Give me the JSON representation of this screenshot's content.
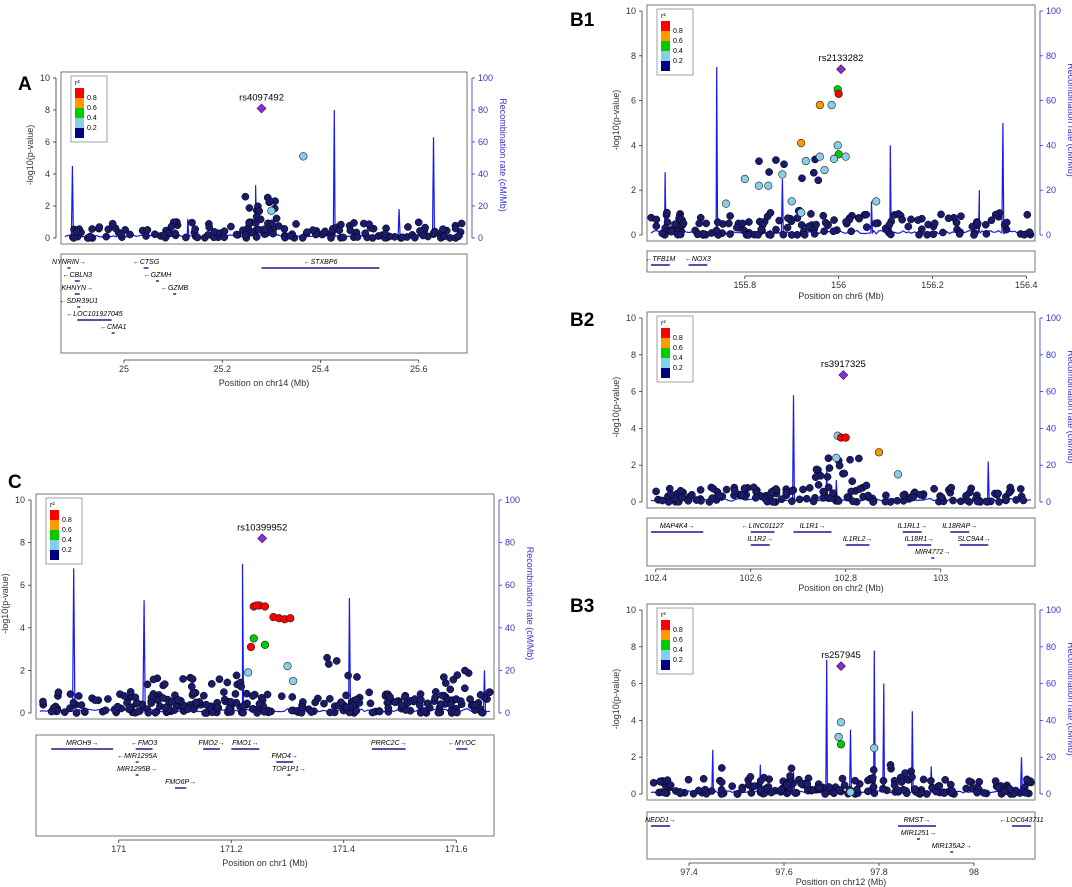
{
  "chart_data": [
    {
      "id": "A",
      "type": "scatter",
      "panel_label": "A",
      "xlabel": "Position on chr14 (Mb)",
      "ylabel": "-log10(p-value)",
      "y2label": "Recombination rate (cM/Mb)",
      "xlim": [
        24.88,
        25.69
      ],
      "ylim": [
        0,
        10
      ],
      "y2lim": [
        0,
        100
      ],
      "xticks": [
        25,
        25.2,
        25.4,
        25.6
      ],
      "xtick_labels": [
        "25",
        "25.2",
        "25.4",
        "25.6"
      ],
      "yticks": [
        0,
        2,
        4,
        6,
        8,
        10
      ],
      "y2ticks": [
        0,
        20,
        40,
        60,
        80,
        100
      ],
      "legend": {
        "title": "r²",
        "labels": [
          "0.8",
          "0.6",
          "0.4",
          "0.2"
        ],
        "colors": [
          "#ff0000",
          "#ff9900",
          "#00cc00",
          "#87ceeb",
          "#000080"
        ]
      },
      "lead_snp": {
        "label": "rs4097492",
        "x": 25.28,
        "y": 8.1
      },
      "highlight_points": [
        {
          "x": 25.365,
          "y": 5.1,
          "r2": 0.3
        },
        {
          "x": 25.3,
          "y": 1.7,
          "r2": 0.3
        }
      ],
      "background_points": {
        "seed": 11,
        "n": 150,
        "gen_x": [
          24.88,
          25.69
        ],
        "max_y": 1.0,
        "clusters": [
          {
            "x": 25.28,
            "w": 0.08,
            "n": 22,
            "maxy": 2.6
          }
        ]
      },
      "recomb_peaks": [
        [
          24.895,
          45
        ],
        [
          25.13,
          12
        ],
        [
          25.268,
          33
        ],
        [
          25.428,
          80
        ],
        [
          25.56,
          18
        ],
        [
          25.63,
          63
        ]
      ],
      "genes": [
        {
          "name": "NYNRIN",
          "start": 24.885,
          "end": 24.89,
          "row": 0,
          "strand": "+"
        },
        {
          "name": "CTSG",
          "start": 25.04,
          "end": 25.05,
          "row": 0,
          "strand": "-"
        },
        {
          "name": "STXBP6",
          "start": 25.28,
          "end": 25.52,
          "row": 0,
          "strand": "-"
        },
        {
          "name": "CBLN3",
          "start": 24.9,
          "end": 24.91,
          "row": 1,
          "strand": "-"
        },
        {
          "name": "GZMH",
          "start": 25.065,
          "end": 25.07,
          "row": 1,
          "strand": "-"
        },
        {
          "name": "KHNYN",
          "start": 24.9,
          "end": 24.91,
          "row": 2,
          "strand": "+"
        },
        {
          "name": "GZMB",
          "start": 25.1,
          "end": 25.105,
          "row": 2,
          "strand": "-"
        },
        {
          "name": "SDR39U1",
          "start": 24.905,
          "end": 24.91,
          "row": 3,
          "strand": "-"
        },
        {
          "name": "LOC101927045",
          "start": 24.905,
          "end": 24.975,
          "row": 4,
          "strand": "-"
        },
        {
          "name": "CMA1",
          "start": 24.975,
          "end": 24.98,
          "row": 5,
          "strand": "-"
        }
      ]
    },
    {
      "id": "B1",
      "type": "scatter",
      "panel_label": "B1",
      "xlabel": "Position on chr6 (Mb)",
      "ylabel": "-log10(p-value)",
      "y2label": "Recombination rate (cM/Mb)",
      "xlim": [
        155.6,
        156.41
      ],
      "ylim": [
        0,
        10
      ],
      "y2lim": [
        0,
        100
      ],
      "xticks": [
        155.8,
        156,
        156.2,
        156.4
      ],
      "xtick_labels": [
        "155.8",
        "156",
        "156.2",
        "156.4"
      ],
      "yticks": [
        0,
        2,
        4,
        6,
        8,
        10
      ],
      "y2ticks": [
        0,
        20,
        40,
        60,
        80,
        100
      ],
      "legend": {
        "title": "r²",
        "labels": [
          "0.8",
          "0.6",
          "0.4",
          "0.2"
        ],
        "colors": [
          "#ff0000",
          "#ff9900",
          "#00cc00",
          "#87ceeb",
          "#000080"
        ]
      },
      "lead_snp": {
        "label": "rs2133282",
        "x": 156.005,
        "y": 7.4
      },
      "highlight_points": [
        {
          "x": 155.998,
          "y": 6.5,
          "r2": 0.5
        },
        {
          "x": 156.0,
          "y": 6.3,
          "r2": 0.9
        },
        {
          "x": 155.96,
          "y": 5.8,
          "r2": 0.7
        },
        {
          "x": 155.985,
          "y": 5.8,
          "r2": 0.3
        },
        {
          "x": 155.92,
          "y": 4.1,
          "r2": 0.7
        },
        {
          "x": 155.998,
          "y": 4.0,
          "r2": 0.3
        },
        {
          "x": 156.0,
          "y": 3.6,
          "r2": 0.5
        },
        {
          "x": 156.015,
          "y": 3.5,
          "r2": 0.3
        },
        {
          "x": 155.96,
          "y": 3.5,
          "r2": 0.3
        },
        {
          "x": 155.93,
          "y": 3.3,
          "r2": 0.3
        },
        {
          "x": 155.99,
          "y": 3.4,
          "r2": 0.3
        },
        {
          "x": 155.8,
          "y": 2.5,
          "r2": 0.3
        },
        {
          "x": 155.83,
          "y": 2.2,
          "r2": 0.3
        },
        {
          "x": 155.85,
          "y": 2.2,
          "r2": 0.3
        },
        {
          "x": 155.88,
          "y": 2.7,
          "r2": 0.3
        },
        {
          "x": 155.97,
          "y": 2.9,
          "r2": 0.3
        },
        {
          "x": 155.9,
          "y": 1.5,
          "r2": 0.3
        },
        {
          "x": 155.76,
          "y": 1.4,
          "r2": 0.3
        },
        {
          "x": 156.08,
          "y": 1.5,
          "r2": 0.3
        },
        {
          "x": 155.92,
          "y": 1.0,
          "r2": 0.3
        }
      ],
      "background_points": {
        "seed": 23,
        "n": 150,
        "gen_x": [
          155.6,
          156.41
        ],
        "max_y": 1.0,
        "clusters": [
          {
            "x": 155.9,
            "w": 0.14,
            "n": 16,
            "maxy": 3.6
          }
        ]
      },
      "recomb_peaks": [
        [
          155.63,
          28
        ],
        [
          155.74,
          75
        ],
        [
          155.88,
          25
        ],
        [
          156.07,
          15
        ],
        [
          156.11,
          40
        ],
        [
          156.3,
          20
        ],
        [
          156.35,
          50
        ]
      ],
      "genes": [
        {
          "name": "TFB1M",
          "start": 155.6,
          "end": 155.64,
          "row": 0,
          "strand": "-"
        },
        {
          "name": "NOX3",
          "start": 155.68,
          "end": 155.72,
          "row": 0,
          "strand": "-"
        }
      ]
    },
    {
      "id": "B2",
      "type": "scatter",
      "panel_label": "B2",
      "xlabel": "Position on chr2 (Mb)",
      "ylabel": "-log10(p-value)",
      "y2label": "Recombination rate (cM/Mb)",
      "xlim": [
        102.39,
        103.19
      ],
      "ylim": [
        0,
        10
      ],
      "y2lim": [
        0,
        100
      ],
      "xticks": [
        102.4,
        102.6,
        102.8,
        103
      ],
      "xtick_labels": [
        "102.4",
        "102.6",
        "102.8",
        "103"
      ],
      "yticks": [
        0,
        2,
        4,
        6,
        8,
        10
      ],
      "y2ticks": [
        0,
        20,
        40,
        60,
        80,
        100
      ],
      "legend": {
        "title": "r²",
        "labels": [
          "0.8",
          "0.6",
          "0.4",
          "0.2"
        ],
        "colors": [
          "#ff0000",
          "#ff9900",
          "#00cc00",
          "#87ceeb",
          "#000080"
        ]
      },
      "lead_snp": {
        "label": "rs3917325",
        "x": 102.795,
        "y": 6.9
      },
      "highlight_points": [
        {
          "x": 102.783,
          "y": 3.6,
          "r2": 0.3
        },
        {
          "x": 102.79,
          "y": 3.5,
          "r2": 0.9
        },
        {
          "x": 102.8,
          "y": 3.5,
          "r2": 0.9
        },
        {
          "x": 102.87,
          "y": 2.7,
          "r2": 0.7
        },
        {
          "x": 102.78,
          "y": 2.4,
          "r2": 0.3
        },
        {
          "x": 102.91,
          "y": 1.5,
          "r2": 0.3
        }
      ],
      "background_points": {
        "seed": 37,
        "n": 150,
        "gen_x": [
          102.39,
          103.19
        ],
        "max_y": 0.8,
        "clusters": [
          {
            "x": 102.79,
            "w": 0.12,
            "n": 22,
            "maxy": 2.4
          }
        ]
      },
      "recomb_peaks": [
        [
          102.69,
          58
        ],
        [
          102.76,
          18
        ],
        [
          102.78,
          12
        ],
        [
          103.1,
          22
        ]
      ],
      "genes": [
        {
          "name": "MAP4K4",
          "start": 102.39,
          "end": 102.5,
          "row": 0,
          "strand": "+"
        },
        {
          "name": "LINC01127",
          "start": 102.6,
          "end": 102.65,
          "row": 0,
          "strand": "-"
        },
        {
          "name": "IL1R1",
          "start": 102.69,
          "end": 102.77,
          "row": 0,
          "strand": "+"
        },
        {
          "name": "IL1RL1",
          "start": 102.92,
          "end": 102.96,
          "row": 0,
          "strand": "+"
        },
        {
          "name": "IL18RAP",
          "start": 103.02,
          "end": 103.06,
          "row": 0,
          "strand": "+"
        },
        {
          "name": "IL1R2",
          "start": 102.6,
          "end": 102.64,
          "row": 1,
          "strand": "+"
        },
        {
          "name": "IL1RL2",
          "start": 102.8,
          "end": 102.85,
          "row": 1,
          "strand": "+"
        },
        {
          "name": "IL18R1",
          "start": 102.93,
          "end": 102.98,
          "row": 1,
          "strand": "+"
        },
        {
          "name": "SLC9A4",
          "start": 103.04,
          "end": 103.1,
          "row": 1,
          "strand": "+"
        },
        {
          "name": "MIR4772",
          "start": 102.98,
          "end": 102.985,
          "row": 2,
          "strand": "+"
        }
      ]
    },
    {
      "id": "B3",
      "type": "scatter",
      "panel_label": "B3",
      "xlabel": "Position on chr12 (Mb)",
      "ylabel": "-log10(p-value)",
      "y2label": "Recombination rate (cM/Mb)",
      "xlim": [
        97.32,
        98.12
      ],
      "ylim": [
        0,
        10
      ],
      "y2lim": [
        0,
        100
      ],
      "xticks": [
        97.4,
        97.6,
        97.8,
        98
      ],
      "xtick_labels": [
        "97.4",
        "97.6",
        "97.8",
        "98"
      ],
      "yticks": [
        0,
        2,
        4,
        6,
        8,
        10
      ],
      "y2ticks": [
        0,
        20,
        40,
        60,
        80,
        100
      ],
      "legend": {
        "title": "r²",
        "labels": [
          "0.8",
          "0.6",
          "0.4",
          "0.2"
        ],
        "colors": [
          "#ff0000",
          "#ff9900",
          "#00cc00",
          "#87ceeb",
          "#000080"
        ]
      },
      "lead_snp": {
        "label": "rs257945",
        "x": 97.72,
        "y": 6.95
      },
      "highlight_points": [
        {
          "x": 97.72,
          "y": 3.9,
          "r2": 0.3
        },
        {
          "x": 97.715,
          "y": 3.1,
          "r2": 0.3
        },
        {
          "x": 97.72,
          "y": 2.7,
          "r2": 0.5
        },
        {
          "x": 97.79,
          "y": 2.5,
          "r2": 0.3
        },
        {
          "x": 97.74,
          "y": 0.1,
          "r2": 0.3
        }
      ],
      "background_points": {
        "seed": 51,
        "n": 160,
        "gen_x": [
          97.32,
          98.12
        ],
        "max_y": 0.9,
        "clusters": [
          {
            "x": 97.55,
            "w": 0.2,
            "n": 14,
            "maxy": 1.5
          },
          {
            "x": 97.82,
            "w": 0.1,
            "n": 14,
            "maxy": 1.8
          }
        ]
      },
      "recomb_peaks": [
        [
          97.45,
          24
        ],
        [
          97.55,
          16
        ],
        [
          97.62,
          12
        ],
        [
          97.69,
          73
        ],
        [
          97.74,
          35
        ],
        [
          97.79,
          78
        ],
        [
          97.81,
          60
        ],
        [
          97.87,
          45
        ],
        [
          97.91,
          15
        ],
        [
          98.1,
          20
        ]
      ],
      "genes": [
        {
          "name": "NEDD1",
          "start": 97.32,
          "end": 97.36,
          "row": 0,
          "strand": "+"
        },
        {
          "name": "RMST",
          "start": 97.84,
          "end": 97.92,
          "row": 0,
          "strand": "+"
        },
        {
          "name": "LOC643711",
          "start": 98.08,
          "end": 98.12,
          "row": 0,
          "strand": "-"
        },
        {
          "name": "MIR1251",
          "start": 97.88,
          "end": 97.885,
          "row": 1,
          "strand": "+"
        },
        {
          "name": "MIR135A2",
          "start": 97.95,
          "end": 97.955,
          "row": 2,
          "strand": "+"
        }
      ]
    },
    {
      "id": "C",
      "type": "scatter",
      "panel_label": "C",
      "xlabel": "Position on chr1 (Mb)",
      "ylabel": "-log10(p-value)",
      "y2label": "Recombination rate (cM/Mb)",
      "xlim": [
        170.86,
        171.66
      ],
      "ylim": [
        0,
        10
      ],
      "y2lim": [
        0,
        100
      ],
      "xticks": [
        171,
        171.2,
        171.4,
        171.6
      ],
      "xtick_labels": [
        "171",
        "171.2",
        "171.4",
        "171.6"
      ],
      "yticks": [
        0,
        2,
        4,
        6,
        8,
        10
      ],
      "y2ticks": [
        0,
        20,
        40,
        60,
        80,
        100
      ],
      "legend": {
        "title": "r²",
        "labels": [
          "0.8",
          "0.6",
          "0.4",
          "0.2"
        ],
        "colors": [
          "#ff0000",
          "#ff9900",
          "#00cc00",
          "#87ceeb",
          "#000080"
        ]
      },
      "lead_snp": {
        "label": "rs10399952",
        "x": 171.255,
        "y": 8.2
      },
      "highlight_points": [
        {
          "x": 171.24,
          "y": 5.0,
          "r2": 0.9
        },
        {
          "x": 171.25,
          "y": 5.05,
          "r2": 0.9
        },
        {
          "x": 171.26,
          "y": 5.0,
          "r2": 0.9
        },
        {
          "x": 171.245,
          "y": 5.05,
          "r2": 0.9
        },
        {
          "x": 171.275,
          "y": 4.5,
          "r2": 0.9
        },
        {
          "x": 171.285,
          "y": 4.45,
          "r2": 0.9
        },
        {
          "x": 171.295,
          "y": 4.4,
          "r2": 0.9
        },
        {
          "x": 171.305,
          "y": 4.45,
          "r2": 0.9
        },
        {
          "x": 171.24,
          "y": 3.5,
          "r2": 0.5
        },
        {
          "x": 171.26,
          "y": 3.2,
          "r2": 0.5
        },
        {
          "x": 171.235,
          "y": 3.1,
          "r2": 0.9
        },
        {
          "x": 171.3,
          "y": 2.2,
          "r2": 0.3
        },
        {
          "x": 171.23,
          "y": 1.9,
          "r2": 0.3
        },
        {
          "x": 171.31,
          "y": 1.5,
          "r2": 0.3
        }
      ],
      "background_points": {
        "seed": 73,
        "n": 230,
        "gen_x": [
          170.86,
          171.66
        ],
        "max_y": 1.0,
        "clusters": [
          {
            "x": 171.13,
            "w": 0.2,
            "n": 30,
            "maxy": 1.8
          },
          {
            "x": 171.4,
            "w": 0.06,
            "n": 8,
            "maxy": 2.7
          },
          {
            "x": 171.6,
            "w": 0.08,
            "n": 14,
            "maxy": 2.0
          }
        ]
      },
      "recomb_peaks": [
        [
          170.92,
          68
        ],
        [
          171.045,
          53
        ],
        [
          171.22,
          70
        ],
        [
          171.41,
          54
        ],
        [
          171.65,
          20
        ]
      ],
      "genes": [
        {
          "name": "MROH9",
          "start": 170.88,
          "end": 170.99,
          "row": 0,
          "strand": "+"
        },
        {
          "name": "FMO3",
          "start": 171.03,
          "end": 171.06,
          "row": 0,
          "strand": "-"
        },
        {
          "name": "FMO2",
          "start": 171.15,
          "end": 171.18,
          "row": 0,
          "strand": "+"
        },
        {
          "name": "FMO1",
          "start": 171.2,
          "end": 171.25,
          "row": 0,
          "strand": "+"
        },
        {
          "name": "PRRC2C",
          "start": 171.45,
          "end": 171.51,
          "row": 0,
          "strand": "+"
        },
        {
          "name": "MYOC",
          "start": 171.6,
          "end": 171.62,
          "row": 0,
          "strand": "-"
        },
        {
          "name": "MIR1295A",
          "start": 171.03,
          "end": 171.035,
          "row": 1,
          "strand": "-"
        },
        {
          "name": "FMO4",
          "start": 171.28,
          "end": 171.31,
          "row": 1,
          "strand": "+"
        },
        {
          "name": "MIR1295B",
          "start": 171.03,
          "end": 171.035,
          "row": 2,
          "strand": "+"
        },
        {
          "name": "TOP1P1",
          "start": 171.3,
          "end": 171.305,
          "row": 2,
          "strand": "+"
        },
        {
          "name": "FMO6P",
          "start": 171.1,
          "end": 171.12,
          "row": 3,
          "strand": "+"
        }
      ]
    }
  ]
}
